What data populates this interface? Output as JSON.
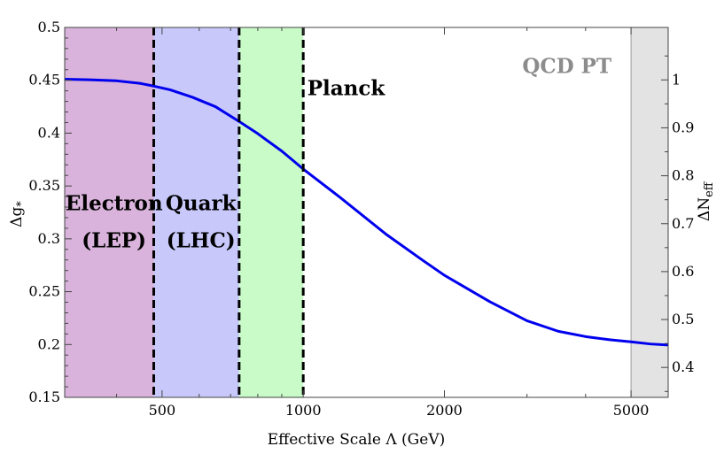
{
  "chart_data": {
    "type": "line",
    "title": "",
    "xlabel": "Effective Scale Λ (GeV)",
    "ylabel_main": "Δg",
    "ylabel_sub": "*",
    "y2label_main": "ΔN",
    "y2label_sub": "eff",
    "x_scale": "log",
    "xlim": [
      310,
      6000
    ],
    "ylim": [
      0.15,
      0.5
    ],
    "y2lim": [
      0.3376,
      1.1095
    ],
    "x_ticks": [
      {
        "value": 500,
        "label": "500"
      },
      {
        "value": 1000,
        "label": "1000"
      },
      {
        "value": 2000,
        "label": "2000"
      },
      {
        "value": 5000,
        "label": "5000"
      }
    ],
    "y_ticks": [
      {
        "value": 0.15,
        "label": "0.15"
      },
      {
        "value": 0.2,
        "label": "0.2"
      },
      {
        "value": 0.25,
        "label": "0.25"
      },
      {
        "value": 0.3,
        "label": "0.3"
      },
      {
        "value": 0.35,
        "label": "0.35"
      },
      {
        "value": 0.4,
        "label": "0.4"
      },
      {
        "value": 0.45,
        "label": "0.45"
      },
      {
        "value": 0.5,
        "label": "0.5"
      }
    ],
    "y2_ticks": [
      {
        "value": 0.4,
        "label": "0.4"
      },
      {
        "value": 0.5,
        "label": "0.5"
      },
      {
        "value": 0.6,
        "label": "0.6"
      },
      {
        "value": 0.7,
        "label": "0.7"
      },
      {
        "value": 0.8,
        "label": "0.8"
      },
      {
        "value": 0.9,
        "label": "0.9"
      },
      {
        "value": 1.0,
        "label": "1"
      }
    ],
    "regions": [
      {
        "x0": 310,
        "x1": 480,
        "color": "#d9b3db"
      },
      {
        "x0": 480,
        "x1": 730,
        "color": "#c8c8fb"
      },
      {
        "x0": 730,
        "x1": 1000,
        "color": "#c8fbc8"
      },
      {
        "x0": 5000,
        "x1": 6000,
        "color": "#e3e3e3"
      }
    ],
    "boundaries": [
      480,
      730,
      1000
    ],
    "labels": [
      {
        "lines": [
          "Electron",
          "(LEP)"
        ],
        "x": 395,
        "y": [
          0.327,
          0.292
        ],
        "style": "region"
      },
      {
        "lines": [
          "Quark",
          "(LHC)"
        ],
        "x": 605,
        "y": [
          0.327,
          0.292
        ],
        "style": "region"
      },
      {
        "lines": [
          "Planck"
        ],
        "x": 1020,
        "y": [
          0.436
        ],
        "style": "region-left"
      },
      {
        "lines": [
          "QCD PT"
        ],
        "x": 3650,
        "y": [
          0.457
        ],
        "style": "qcd"
      }
    ],
    "series": [
      {
        "color": "#0000ee",
        "points": [
          [
            310,
            0.451
          ],
          [
            350,
            0.4505
          ],
          [
            400,
            0.4495
          ],
          [
            450,
            0.447
          ],
          [
            480,
            0.4445
          ],
          [
            520,
            0.441
          ],
          [
            580,
            0.434
          ],
          [
            650,
            0.425
          ],
          [
            730,
            0.411
          ],
          [
            800,
            0.3995
          ],
          [
            900,
            0.383
          ],
          [
            1000,
            0.366
          ],
          [
            1200,
            0.339
          ],
          [
            1500,
            0.3045
          ],
          [
            1800,
            0.2795
          ],
          [
            2000,
            0.2655
          ],
          [
            2500,
            0.2405
          ],
          [
            3000,
            0.2225
          ],
          [
            3500,
            0.2125
          ],
          [
            4000,
            0.2075
          ],
          [
            4500,
            0.2045
          ],
          [
            5000,
            0.2025
          ],
          [
            5500,
            0.2005
          ],
          [
            6000,
            0.1995
          ]
        ]
      }
    ]
  }
}
